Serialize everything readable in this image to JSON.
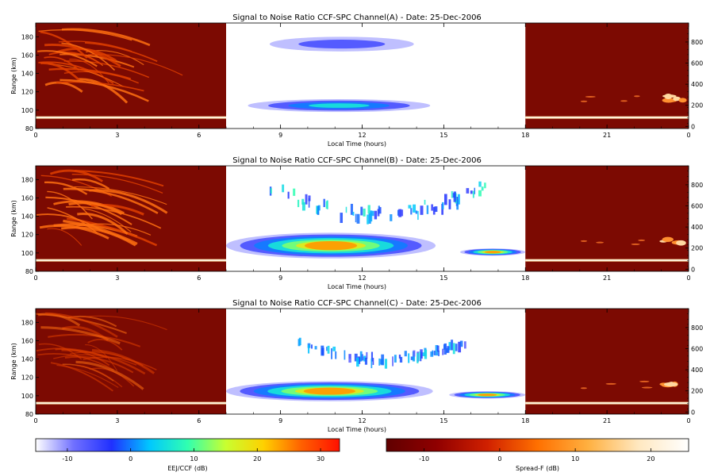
{
  "chart_data": [
    {
      "type": "heatmap",
      "title": "Signal to Noise Ratio CCF-SPC Channel(A) - Date: 25-Dec-2006",
      "xlabel": "Local Time (hours)",
      "ylabel": "Range (km)",
      "xlim": [
        0,
        24
      ],
      "ylim": [
        80,
        195
      ],
      "y2lim": [
        -20,
        980
      ],
      "x_ticks": [
        "0",
        "3",
        "6",
        "9",
        "12",
        "15",
        "18",
        "21",
        "0"
      ],
      "y_ticks": [
        80,
        100,
        120,
        140,
        160,
        180
      ],
      "y2_ticks": [
        0,
        200,
        400,
        600,
        800
      ],
      "segments": [
        {
          "x": [
            0,
            7
          ],
          "scale": "Spread-F (dB)",
          "features": [
            {
              "kind": "streaks",
              "x": [
                0,
                4.2
              ],
              "y": [
                125,
                190
              ]
            },
            {
              "kind": "layer",
              "x": [
                0,
                7
              ],
              "y": 92
            }
          ]
        },
        {
          "x": [
            7,
            18
          ],
          "scale": "EEJ/CCF (dB)",
          "features": [
            {
              "kind": "blob",
              "x": [
                8.6,
                13.9
              ],
              "y": [
                164,
                180
              ],
              "snr": -7
            },
            {
              "kind": "blob",
              "x": [
                7.8,
                14.5
              ],
              "y": [
                98,
                112
              ],
              "snr": 2
            }
          ]
        },
        {
          "x": [
            18,
            24
          ],
          "scale": "Spread-F (dB)",
          "features": [
            {
              "kind": "layer",
              "x": [
                18,
                24
              ],
              "y": 92
            },
            {
              "kind": "patch",
              "x": [
                23,
                23.8
              ],
              "y": [
                110,
                116
              ]
            }
          ]
        }
      ]
    },
    {
      "type": "heatmap",
      "title": "Signal to Noise Ratio CCF-SPC Channel(B) - Date: 25-Dec-2006",
      "xlabel": "Local Time (hours)",
      "ylabel": "Range (km)",
      "xlim": [
        0,
        24
      ],
      "ylim": [
        80,
        195
      ],
      "y2lim": [
        -20,
        980
      ],
      "x_ticks": [
        "0",
        "3",
        "6",
        "9",
        "12",
        "15",
        "18",
        "21",
        "0"
      ],
      "y_ticks": [
        80,
        100,
        120,
        140,
        160,
        180
      ],
      "y2_ticks": [
        0,
        200,
        400,
        600,
        800
      ],
      "segments": [
        {
          "x": [
            0,
            7
          ],
          "scale": "Spread-F (dB)",
          "features": [
            {
              "kind": "streaks",
              "x": [
                0,
                4.2
              ],
              "y": [
                125,
                190
              ]
            },
            {
              "kind": "layer",
              "x": [
                0,
                7
              ],
              "y": 92
            }
          ]
        },
        {
          "x": [
            7,
            18
          ],
          "scale": "EEJ/CCF (dB)",
          "features": [
            {
              "kind": "arc",
              "x": [
                8.5,
                16.5
              ],
              "y": [
                140,
                175
              ],
              "snr": -5
            },
            {
              "kind": "blob",
              "x": [
                7.0,
                14.7
              ],
              "y": [
                94,
                122
              ],
              "snr": 25
            },
            {
              "kind": "blob",
              "x": [
                15.6,
                18
              ],
              "y": [
                97,
                105
              ],
              "snr": 22
            }
          ]
        },
        {
          "x": [
            18,
            24
          ],
          "scale": "Spread-F (dB)",
          "features": [
            {
              "kind": "layer",
              "x": [
                18,
                24
              ],
              "y": 92
            },
            {
              "kind": "patch",
              "x": [
                23,
                23.8
              ],
              "y": [
                110,
                116
              ]
            }
          ]
        }
      ]
    },
    {
      "type": "heatmap",
      "title": "Signal to Noise Ratio CCF-SPC Channel(C) - Date: 25-Dec-2006",
      "xlabel": "Local Time (hours)",
      "ylabel": "Range (km)",
      "xlim": [
        0,
        24
      ],
      "ylim": [
        80,
        195
      ],
      "y2lim": [
        -20,
        980
      ],
      "x_ticks": [
        "0",
        "3",
        "6",
        "9",
        "12",
        "15",
        "18",
        "21",
        "0"
      ],
      "y_ticks": [
        80,
        100,
        120,
        140,
        160,
        180
      ],
      "y2_ticks": [
        0,
        200,
        400,
        600,
        800
      ],
      "segments": [
        {
          "x": [
            0,
            7
          ],
          "scale": "Spread-F (dB)",
          "features": [
            {
              "kind": "streaks",
              "x": [
                0,
                4.2
              ],
              "y": [
                125,
                190
              ]
            },
            {
              "kind": "layer",
              "x": [
                0,
                7
              ],
              "y": 92
            }
          ]
        },
        {
          "x": [
            7,
            18
          ],
          "scale": "EEJ/CCF (dB)",
          "features": [
            {
              "kind": "arc",
              "x": [
                9.5,
                15.8
              ],
              "y": [
                140,
                162
              ],
              "snr": -8
            },
            {
              "kind": "blob",
              "x": [
                7.0,
                14.6
              ],
              "y": [
                94,
                116
              ],
              "snr": 22
            },
            {
              "kind": "blob",
              "x": [
                15.2,
                18
              ],
              "y": [
                97,
                105
              ],
              "snr": 20
            }
          ]
        },
        {
          "x": [
            18,
            24
          ],
          "scale": "Spread-F (dB)",
          "features": [
            {
              "kind": "layer",
              "x": [
                18,
                24
              ],
              "y": 92
            },
            {
              "kind": "patch",
              "x": [
                23,
                23.8
              ],
              "y": [
                110,
                116
              ]
            }
          ]
        }
      ]
    }
  ],
  "colorbars": [
    {
      "label": "EEJ/CCF (dB)",
      "range": [
        -15,
        33
      ],
      "ticks": [
        -10,
        0,
        10,
        20,
        30
      ],
      "colors": [
        "#ffffff",
        "#7070ff",
        "#2030ff",
        "#00c8ff",
        "#30ffb0",
        "#c8ff30",
        "#ffd000",
        "#ff6000",
        "#ff1000"
      ]
    },
    {
      "label": "Spread-F (dB)",
      "range": [
        -15,
        25
      ],
      "ticks": [
        -10,
        0,
        10,
        20
      ],
      "colors": [
        "#600000",
        "#900000",
        "#d02000",
        "#ff7000",
        "#ffb040",
        "#ffe8c0",
        "#ffffff"
      ]
    }
  ],
  "colors": {
    "spreadf_bg": "#7c0a02",
    "text": "#000000"
  }
}
